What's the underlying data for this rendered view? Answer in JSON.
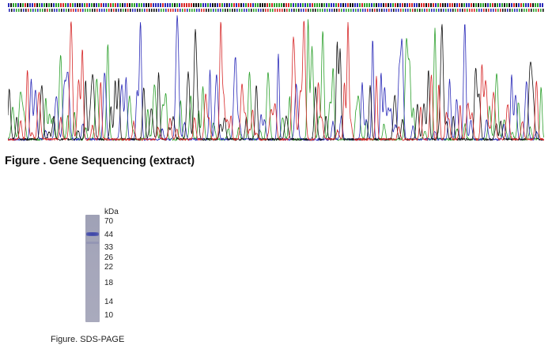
{
  "sequencing": {
    "caption": "Figure . Gene Sequencing (extract)",
    "colors": {
      "A": "#2ca02c",
      "C": "#2a2ab8",
      "G": "#111111",
      "T": "#d62728"
    }
  },
  "sds_page": {
    "unit_label": "kDa",
    "markers": [
      "70",
      "44",
      "33",
      "26",
      "22",
      "18",
      "14",
      "10"
    ],
    "band_color": "#3942a6",
    "caption": "Figure. SDS-PAGE"
  }
}
